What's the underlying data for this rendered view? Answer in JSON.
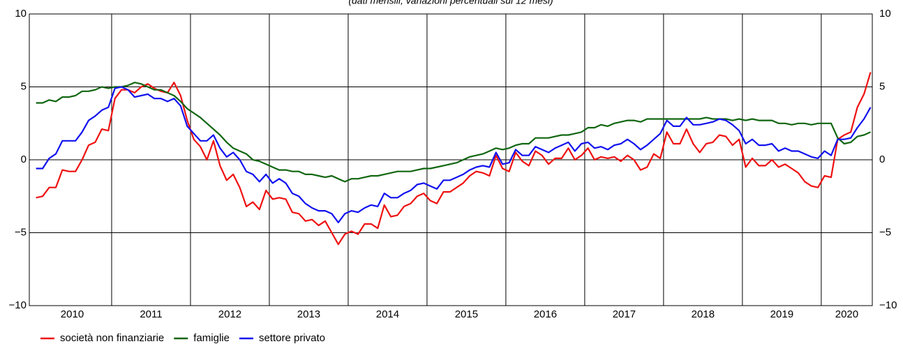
{
  "chart_data": {
    "type": "line",
    "subtitle": "(dati mensili; variazioni percentuali sui 12 mesi)",
    "categories": [
      "2010",
      null,
      null,
      null,
      null,
      null,
      null,
      null,
      null,
      null,
      null,
      null,
      "2011",
      null,
      null,
      null,
      null,
      null,
      null,
      null,
      null,
      null,
      null,
      null,
      "2012",
      null,
      null,
      null,
      null,
      null,
      null,
      null,
      null,
      null,
      null,
      null,
      "2013",
      null,
      null,
      null,
      null,
      null,
      null,
      null,
      null,
      null,
      null,
      null,
      "2014",
      null,
      null,
      null,
      null,
      null,
      null,
      null,
      null,
      null,
      null,
      null,
      "2015",
      null,
      null,
      null,
      null,
      null,
      null,
      null,
      null,
      null,
      null,
      null,
      "2016",
      null,
      null,
      null,
      null,
      null,
      null,
      null,
      null,
      null,
      null,
      null,
      "2017",
      null,
      null,
      null,
      null,
      null,
      null,
      null,
      null,
      null,
      null,
      null,
      "2018",
      null,
      null,
      null,
      null,
      null,
      null,
      null,
      null,
      null,
      null,
      null,
      "2019",
      null,
      null,
      null,
      null,
      null,
      null,
      null,
      null,
      null,
      null,
      null,
      "2020",
      null,
      null,
      null,
      null,
      null,
      null,
      null
    ],
    "series": [
      {
        "name": "società non finanziarie",
        "color": "#ee1111",
        "values": [
          -2.6,
          -2.5,
          -1.9,
          -1.9,
          -0.7,
          -0.8,
          -0.8,
          0.0,
          1.0,
          1.2,
          2.1,
          2.0,
          4.2,
          4.8,
          4.8,
          4.6,
          5.0,
          5.2,
          4.9,
          4.7,
          4.6,
          5.3,
          4.4,
          2.7,
          1.4,
          0.9,
          0.0,
          1.3,
          -0.4,
          -1.4,
          -1.0,
          -1.9,
          -3.2,
          -2.9,
          -3.4,
          -2.1,
          -2.7,
          -2.6,
          -2.7,
          -3.6,
          -3.7,
          -4.2,
          -4.1,
          -4.5,
          -4.2,
          -5.0,
          -5.8,
          -5.1,
          -4.9,
          -5.1,
          -4.4,
          -4.4,
          -4.7,
          -3.1,
          -3.9,
          -3.8,
          -3.2,
          -3.0,
          -2.5,
          -2.3,
          -2.8,
          -3.0,
          -2.2,
          -2.2,
          -1.9,
          -1.6,
          -1.1,
          -0.8,
          -0.9,
          -1.1,
          0.3,
          -0.6,
          -0.8,
          0.5,
          -0.1,
          -0.4,
          0.6,
          0.3,
          -0.3,
          0.1,
          0.1,
          0.8,
          0.0,
          0.3,
          0.8,
          0.0,
          0.2,
          0.1,
          0.2,
          -0.1,
          0.3,
          0.0,
          -0.7,
          -0.5,
          0.4,
          0.1,
          1.9,
          1.1,
          1.1,
          2.1,
          1.1,
          0.5,
          1.1,
          1.2,
          1.7,
          1.6,
          1.0,
          1.4,
          -0.5,
          0.1,
          -0.4,
          -0.4,
          0.0,
          -0.5,
          -0.3,
          -0.6,
          -0.9,
          -1.5,
          -1.8,
          -1.9,
          -1.1,
          -1.2,
          1.4,
          1.7,
          1.9,
          3.6,
          4.5,
          6.0
        ]
      },
      {
        "name": "famiglie",
        "color": "#116611",
        "values": [
          3.9,
          3.9,
          4.1,
          4.0,
          4.3,
          4.3,
          4.4,
          4.7,
          4.7,
          4.8,
          5.0,
          4.9,
          5.0,
          5.0,
          5.1,
          5.3,
          5.2,
          5.0,
          4.8,
          4.8,
          4.6,
          4.4,
          4.0,
          3.5,
          3.2,
          2.9,
          2.5,
          2.1,
          1.7,
          1.2,
          0.8,
          0.6,
          0.4,
          0.0,
          -0.1,
          -0.3,
          -0.5,
          -0.7,
          -0.7,
          -0.8,
          -0.8,
          -1.0,
          -1.0,
          -1.1,
          -1.2,
          -1.1,
          -1.3,
          -1.5,
          -1.3,
          -1.3,
          -1.2,
          -1.1,
          -1.1,
          -1.0,
          -0.9,
          -0.8,
          -0.8,
          -0.8,
          -0.7,
          -0.6,
          -0.6,
          -0.5,
          -0.4,
          -0.3,
          -0.2,
          0.0,
          0.2,
          0.3,
          0.4,
          0.6,
          0.8,
          0.7,
          0.8,
          1.0,
          1.1,
          1.1,
          1.5,
          1.5,
          1.5,
          1.6,
          1.7,
          1.7,
          1.8,
          1.9,
          2.2,
          2.2,
          2.4,
          2.3,
          2.5,
          2.6,
          2.7,
          2.7,
          2.6,
          2.8,
          2.8,
          2.8,
          2.8,
          2.8,
          2.8,
          2.8,
          2.8,
          2.8,
          2.9,
          2.8,
          2.8,
          2.8,
          2.7,
          2.8,
          2.7,
          2.8,
          2.7,
          2.7,
          2.7,
          2.5,
          2.5,
          2.4,
          2.5,
          2.5,
          2.4,
          2.5,
          2.5,
          2.5,
          1.5,
          1.1,
          1.2,
          1.6,
          1.7,
          1.9
        ]
      },
      {
        "name": "settore privato",
        "color": "#1111ee",
        "values": [
          -0.6,
          -0.6,
          0.1,
          0.4,
          1.3,
          1.3,
          1.3,
          1.9,
          2.7,
          3.0,
          3.4,
          3.6,
          4.9,
          5.0,
          4.8,
          4.3,
          4.4,
          4.5,
          4.2,
          4.2,
          4.0,
          4.2,
          3.7,
          2.3,
          1.8,
          1.3,
          1.3,
          1.7,
          0.8,
          0.2,
          0.5,
          0.0,
          -0.8,
          -1.0,
          -1.5,
          -1.0,
          -1.6,
          -1.3,
          -1.6,
          -2.3,
          -2.5,
          -3.0,
          -3.3,
          -3.5,
          -3.5,
          -3.7,
          -4.3,
          -3.7,
          -3.5,
          -3.6,
          -3.3,
          -3.1,
          -3.2,
          -2.3,
          -2.6,
          -2.6,
          -2.3,
          -2.1,
          -1.7,
          -1.6,
          -1.8,
          -2.0,
          -1.4,
          -1.4,
          -1.2,
          -1.0,
          -0.7,
          -0.5,
          -0.4,
          -0.5,
          0.5,
          -0.3,
          -0.2,
          0.7,
          0.3,
          0.3,
          0.9,
          0.7,
          0.5,
          0.8,
          1.0,
          1.2,
          0.6,
          1.1,
          1.2,
          0.8,
          0.9,
          0.7,
          1.0,
          1.1,
          1.4,
          1.1,
          0.7,
          1.0,
          1.4,
          1.8,
          2.7,
          2.3,
          2.3,
          2.9,
          2.4,
          2.4,
          2.5,
          2.6,
          2.8,
          2.7,
          2.4,
          2.0,
          1.1,
          1.4,
          1.0,
          1.0,
          1.1,
          0.6,
          0.8,
          0.6,
          0.6,
          0.4,
          0.2,
          0.1,
          0.6,
          0.3,
          1.4,
          1.4,
          1.5,
          2.2,
          2.8,
          3.6
        ]
      }
    ],
    "ylim": [
      -10,
      10
    ],
    "yticks": [
      {
        "value": -10,
        "label": "−10"
      },
      {
        "value": -5,
        "label": "−5"
      },
      0,
      5,
      10
    ],
    "grid": true
  }
}
